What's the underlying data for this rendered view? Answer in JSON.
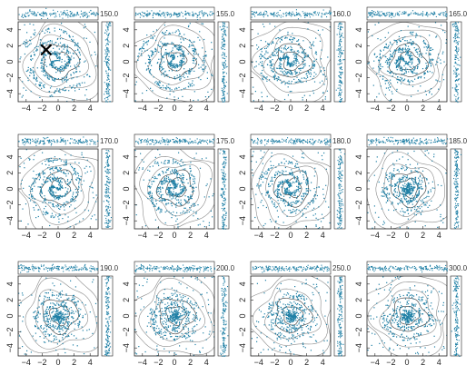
{
  "figure": {
    "colors": {
      "particles": "#1e7fa5",
      "contour_dark": "#333333",
      "contour_light": "#8a8a8a",
      "frame": "#222222",
      "marker": "#000000"
    }
  },
  "chart_data": {
    "type": "scatter",
    "layout": "4x3 grid of panels, each with a top (x-projection) strip and a right (y-projection) strip",
    "xlim": [
      -5,
      5
    ],
    "ylim": [
      -5,
      5
    ],
    "x_ticks": [
      "−4",
      "−2",
      "0",
      "2",
      "4"
    ],
    "y_ticks": [
      "4",
      "2",
      "0",
      "−2",
      "−4"
    ],
    "grid": false,
    "panels": [
      {
        "label": "150.0",
        "marker": {
          "shape": "x",
          "x": -1.5,
          "y": 1.5
        },
        "pattern": "swirl"
      },
      {
        "label": "155.0",
        "pattern": "swirl"
      },
      {
        "label": "160.0",
        "pattern": "spiral"
      },
      {
        "label": "165.0",
        "pattern": "spiral"
      },
      {
        "label": "170.0",
        "pattern": "spiral"
      },
      {
        "label": "175.0",
        "pattern": "spiral"
      },
      {
        "label": "180.0",
        "pattern": "spiral"
      },
      {
        "label": "185.0",
        "pattern": "ring"
      },
      {
        "label": "190.0",
        "pattern": "ring"
      },
      {
        "label": "200.0",
        "pattern": "ring"
      },
      {
        "label": "250.0",
        "pattern": "ring"
      },
      {
        "label": "300.0",
        "pattern": "ring"
      }
    ]
  }
}
